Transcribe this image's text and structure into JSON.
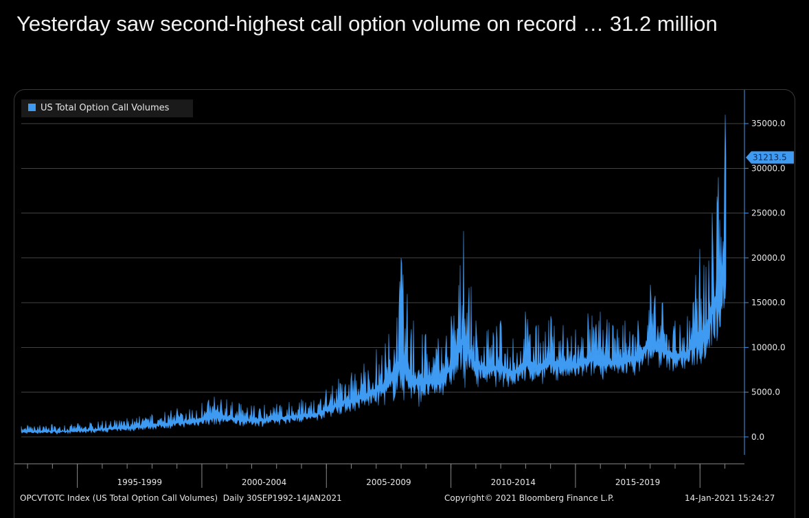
{
  "headline": "Yesterday saw second-highest call option volume on record … 31.2 million",
  "colors": {
    "series": "#3f9bf2",
    "grid": "#5a5a5a",
    "background": "#000000",
    "axis": "#8a8a8a"
  },
  "footer": {
    "index_label": "OPCVTOTC Index (US Total Option Call Volumes)  Daily 30SEP1992-14JAN2021",
    "copyright": "Copyright© 2021 Bloomberg Finance L.P.",
    "timestamp": "14-Jan-2021 15:24:27"
  },
  "chart_data": {
    "type": "area",
    "legend": {
      "entries": [
        "US Total Option Call Volumes"
      ],
      "placement": "top-left"
    },
    "y_axis": {
      "side": "right",
      "ylim": [
        -3000,
        38000
      ],
      "ticks": [
        0,
        5000,
        10000,
        15000,
        20000,
        25000,
        30000,
        35000
      ],
      "tick_labels": [
        "0.0",
        "5000.0",
        "10000.0",
        "15000.0",
        "20000.0",
        "25000.0",
        "30000.0",
        "35000.0"
      ]
    },
    "x_axis": {
      "period_start": 1992.75,
      "period_end": 2021.04,
      "period_labels": [
        "1995-1999",
        "2000-2004",
        "2005-2009",
        "2010-2014",
        "2015-2019"
      ],
      "period_bounds": [
        [
          1995,
          2000
        ],
        [
          2000,
          2005
        ],
        [
          2005,
          2010
        ],
        [
          2010,
          2015
        ],
        [
          2015,
          2020
        ]
      ]
    },
    "grid": true,
    "last_value": {
      "value": 31213.5,
      "label": "31213.5"
    },
    "series": [
      {
        "name": "US Total Option Call Volumes",
        "x": [
          1992.75,
          1993.0,
          1993.5,
          1994.0,
          1994.5,
          1995.0,
          1995.5,
          1996.0,
          1996.5,
          1997.0,
          1997.5,
          1998.0,
          1998.5,
          1999.0,
          1999.5,
          2000.0,
          2000.5,
          2001.0,
          2001.5,
          2002.0,
          2002.5,
          2003.0,
          2003.5,
          2004.0,
          2004.5,
          2005.0,
          2005.5,
          2006.0,
          2006.5,
          2007.0,
          2007.5,
          2008.0,
          2008.5,
          2009.0,
          2009.5,
          2010.0,
          2010.5,
          2011.0,
          2011.5,
          2012.0,
          2012.5,
          2013.0,
          2013.5,
          2014.0,
          2014.5,
          2015.0,
          2015.5,
          2016.0,
          2016.5,
          2017.0,
          2017.5,
          2018.0,
          2018.5,
          2019.0,
          2019.5,
          2020.0,
          2020.25,
          2020.5,
          2020.75,
          2021.0,
          2021.04
        ],
        "low": [
          300,
          300,
          300,
          300,
          300,
          350,
          400,
          450,
          500,
          550,
          650,
          750,
          800,
          900,
          1000,
          1100,
          1200,
          1200,
          1100,
          1100,
          1100,
          1200,
          1400,
          1500,
          1600,
          2000,
          2300,
          2500,
          2800,
          3000,
          3400,
          3200,
          3000,
          3500,
          4000,
          5000,
          5200,
          5500,
          5400,
          5300,
          5200,
          5400,
          5600,
          5800,
          5900,
          6000,
          6100,
          6300,
          6200,
          6500,
          6800,
          7500,
          7200,
          7000,
          7200,
          7000,
          8000,
          9000,
          10000,
          12000,
          13000
        ],
        "high": [
          1200,
          1300,
          1300,
          1400,
          1300,
          1500,
          1600,
          1800,
          1900,
          2100,
          2300,
          2500,
          2800,
          3200,
          3100,
          3800,
          4500,
          4200,
          3800,
          3500,
          3600,
          3700,
          3900,
          4200,
          4100,
          5300,
          6500,
          7200,
          8200,
          9800,
          11500,
          20000,
          13000,
          11500,
          11000,
          13500,
          23000,
          13000,
          12000,
          13000,
          11000,
          14000,
          12500,
          13500,
          12500,
          12000,
          13800,
          14000,
          12500,
          13000,
          13000,
          17000,
          15000,
          13000,
          13500,
          21000,
          19000,
          25000,
          29000,
          36000,
          31213.5
        ]
      }
    ]
  }
}
